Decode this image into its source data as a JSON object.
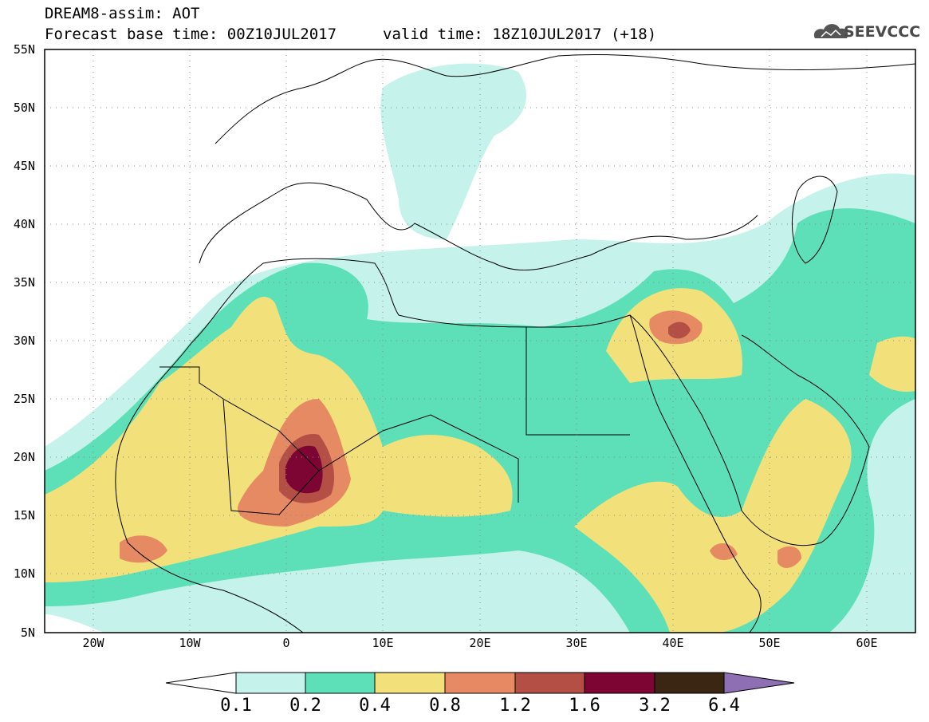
{
  "header": {
    "title": "DREAM8-assim: AOT",
    "base_time": "Forecast base time: 00Z10JUL2017",
    "valid_time": "valid time: 18Z10JUL2017 (+18)",
    "logo_text": "SEEVCCC"
  },
  "axes": {
    "lat_labels": [
      "55N",
      "50N",
      "45N",
      "40N",
      "35N",
      "30N",
      "25N",
      "20N",
      "15N",
      "10N",
      "5N"
    ],
    "lon_labels": [
      "20W",
      "10W",
      "0",
      "10E",
      "20E",
      "30E",
      "40E",
      "50E",
      "60E"
    ]
  },
  "colorbar": {
    "labels": [
      "0.1",
      "0.2",
      "0.4",
      "0.8",
      "1.2",
      "1.6",
      "3.2",
      "6.4"
    ],
    "colors": [
      "#c5f2ea",
      "#5de0b8",
      "#f2e17a",
      "#e58a62",
      "#b44f45",
      "#7c0534",
      "#3b2614",
      "#8f6fb4"
    ]
  },
  "map_extent": {
    "lon_min": -25,
    "lon_max": 65,
    "lat_min": 5,
    "lat_max": 55
  }
}
